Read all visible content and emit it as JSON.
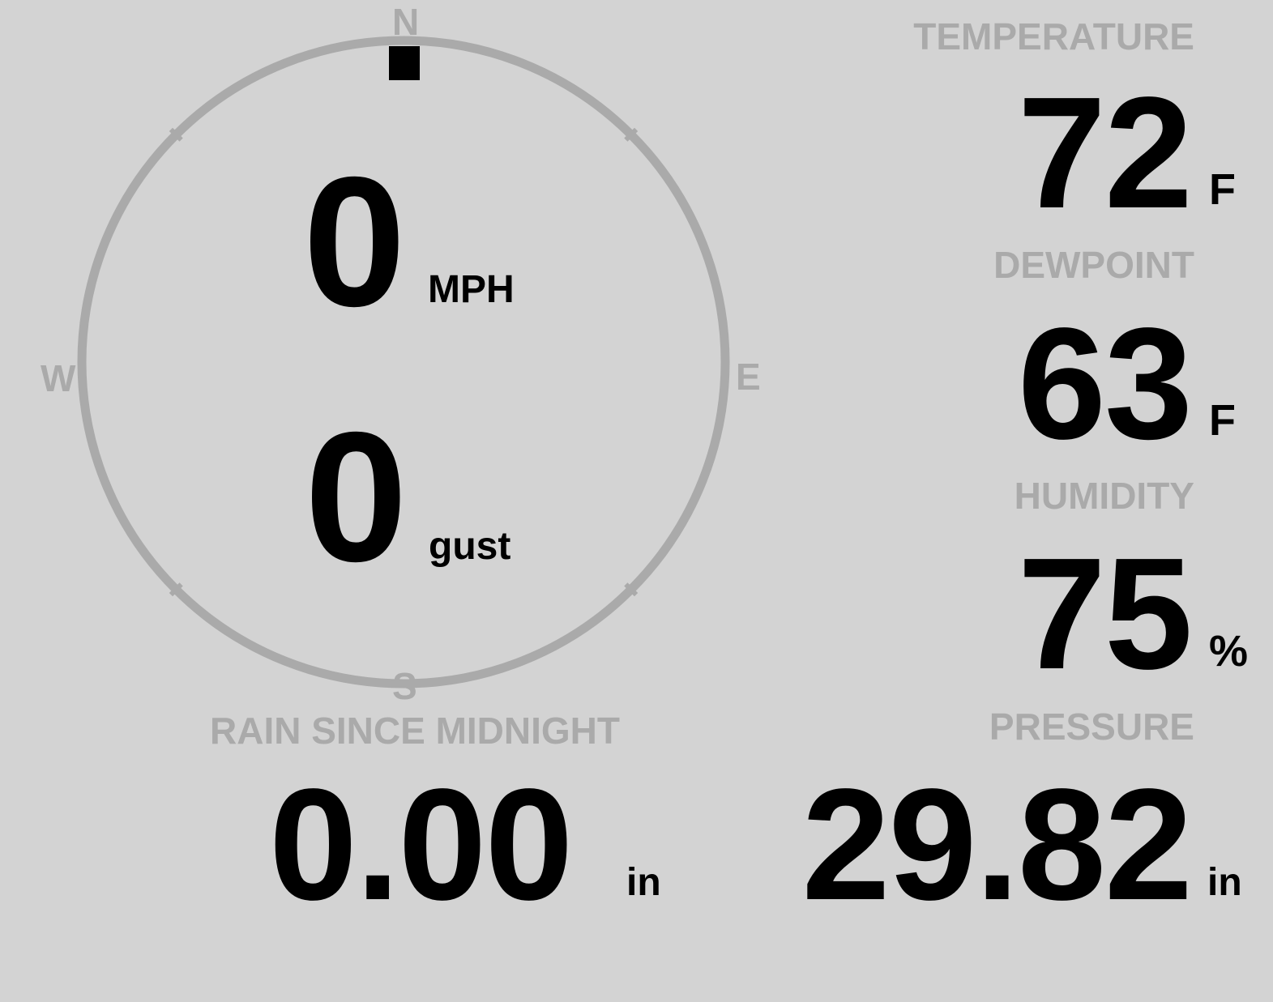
{
  "colors": {
    "background": "#d3d3d3",
    "label": "#aaaaaa",
    "value": "#000000"
  },
  "wind": {
    "directions": {
      "n": "N",
      "e": "E",
      "s": "S",
      "w": "W"
    },
    "direction_degrees": 0,
    "speed": "0",
    "speed_unit": "MPH",
    "gust": "0",
    "gust_unit": "gust"
  },
  "rain": {
    "label": "RAIN SINCE MIDNIGHT",
    "value": "0.00",
    "unit": "in"
  },
  "temperature": {
    "label": "TEMPERATURE",
    "value": "72",
    "unit": "F"
  },
  "dewpoint": {
    "label": "DEWPOINT",
    "value": "63",
    "unit": "F"
  },
  "humidity": {
    "label": "HUMIDITY",
    "value": "75",
    "unit": "%"
  },
  "pressure": {
    "label": "PRESSURE",
    "value": "29.82",
    "unit": "in"
  }
}
